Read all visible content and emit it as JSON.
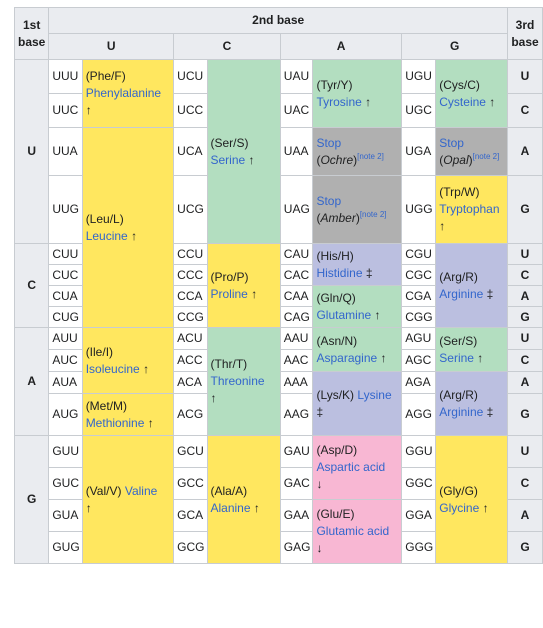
{
  "header": {
    "first_base": "1st base",
    "second_base": "2nd base",
    "third_base": "3rd base",
    "bases": [
      "U",
      "C",
      "A",
      "G"
    ]
  },
  "third_labels": [
    "U",
    "C",
    "A",
    "G",
    "U",
    "C",
    "A",
    "G",
    "U",
    "C",
    "A",
    "G",
    "U",
    "C",
    "A",
    "G"
  ],
  "codons": {
    "U": [
      "UUU",
      "UUC",
      "UUA",
      "UUG",
      "UCU",
      "UCC",
      "UCA",
      "UCG",
      "UAU",
      "UAC",
      "UAA",
      "UAG",
      "UGU",
      "UGC",
      "UGA",
      "UGG"
    ],
    "C": [
      "CUU",
      "CUC",
      "CUA",
      "CUG",
      "CCU",
      "CCC",
      "CCA",
      "CCG",
      "CAU",
      "CAC",
      "CAA",
      "CAG",
      "CGU",
      "CGC",
      "CGA",
      "CGG"
    ],
    "A": [
      "AUU",
      "AUC",
      "AUA",
      "AUG",
      "ACU",
      "ACC",
      "ACA",
      "ACG",
      "AAU",
      "AAC",
      "AAA",
      "AAG",
      "AGU",
      "AGC",
      "AGA",
      "AGG"
    ],
    "G": [
      "GUU",
      "GUC",
      "GUA",
      "GUG",
      "GCU",
      "GCC",
      "GCA",
      "GCG",
      "GAU",
      "GAC",
      "GAA",
      "GAG",
      "GGU",
      "GGC",
      "GGA",
      "GGG"
    ]
  },
  "amino_acids": {
    "phe": {
      "abbr": "(Phe/F)",
      "name": "Phenylalanine",
      "mark": "↑"
    },
    "leu": {
      "abbr": "(Leu/L)",
      "name": "Leucine",
      "mark": "↑"
    },
    "ile": {
      "abbr": "(Ile/I)",
      "name": "Isoleucine",
      "mark": "↑"
    },
    "met": {
      "abbr": "(Met/M)",
      "name": "Methionine",
      "mark": "↑"
    },
    "val": {
      "abbr": "(Val/V)",
      "name": "Valine",
      "mark": "↑"
    },
    "ser": {
      "abbr": "(Ser/S)",
      "name": "Serine",
      "mark": "↑"
    },
    "pro": {
      "abbr": "(Pro/P)",
      "name": "Proline",
      "mark": "↑"
    },
    "thr": {
      "abbr": "(Thr/T)",
      "name": "Threonine",
      "mark": "↑"
    },
    "ala": {
      "abbr": "(Ala/A)",
      "name": "Alanine",
      "mark": "↑"
    },
    "tyr": {
      "abbr": "(Tyr/Y)",
      "name": "Tyrosine",
      "mark": "↑"
    },
    "his": {
      "abbr": "(His/H)",
      "name": "Histidine",
      "mark": "‡"
    },
    "gln": {
      "abbr": "(Gln/Q)",
      "name": "Glutamine",
      "mark": "↑"
    },
    "asn": {
      "abbr": "(Asn/N)",
      "name": "Asparagine",
      "mark": "↑"
    },
    "lys": {
      "abbr": "(Lys/K)",
      "name": "Lysine",
      "mark": "‡"
    },
    "asp": {
      "abbr": "(Asp/D)",
      "name": "Aspartic acid",
      "mark": "↓"
    },
    "glu": {
      "abbr": "(Glu/E)",
      "name": "Glutamic acid",
      "mark": "↓"
    },
    "cys": {
      "abbr": "(Cys/C)",
      "name": "Cysteine",
      "mark": "↑"
    },
    "trp": {
      "abbr": "(Trp/W)",
      "name": "Tryptophan",
      "mark": "↑"
    },
    "arg": {
      "abbr": "(Arg/R)",
      "name": "Arginine",
      "mark": "‡"
    },
    "ser2": {
      "abbr": "(Ser/S)",
      "name": "Serine",
      "mark": "↑"
    },
    "arg2": {
      "abbr": "(Arg/R)",
      "name": "Arginine",
      "mark": "‡"
    },
    "gly": {
      "abbr": "(Gly/G)",
      "name": "Glycine",
      "mark": "↑"
    }
  },
  "stops": {
    "ochre": {
      "label": "Stop",
      "name": "Ochre",
      "note": "[note 2]"
    },
    "amber": {
      "label": "Stop",
      "name": "Amber",
      "note": "[note 2]"
    },
    "opal": {
      "label": "Stop",
      "name": "Opal",
      "note": "[note 2]"
    }
  },
  "colors": {
    "nonpolar": "#ffe75f",
    "polar": "#b3dec0",
    "basic": "#bbbfe0",
    "acidic": "#f8b7d3",
    "stop": "#b0b0b0",
    "header_bg": "#eaecf0",
    "link": "#3366cc"
  }
}
